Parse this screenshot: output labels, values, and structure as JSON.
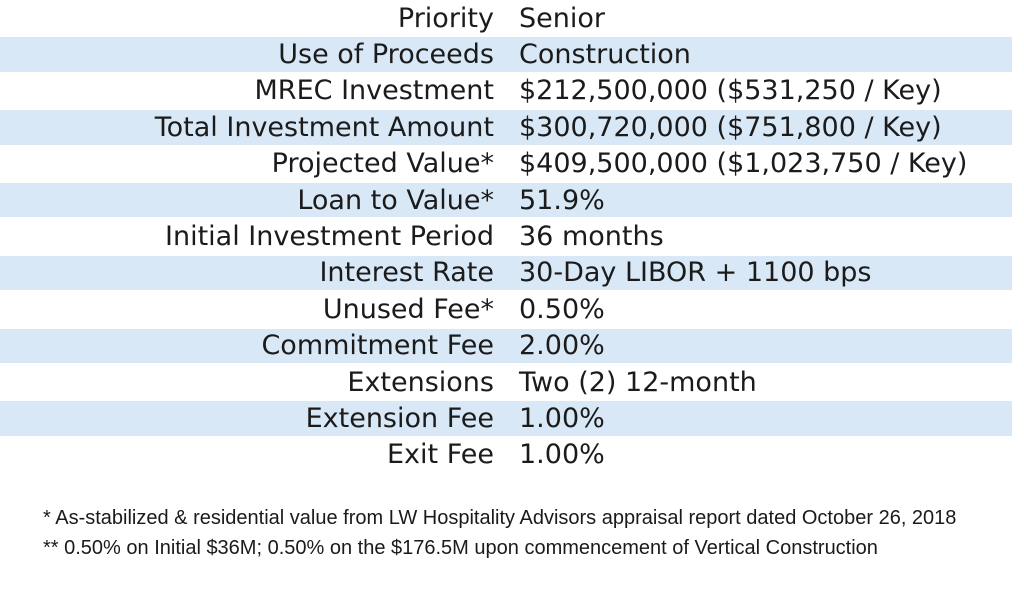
{
  "table": {
    "zebra_color": "#d9e8f6",
    "text_color": "#1b1b1b",
    "rows": [
      {
        "label": "Priority",
        "value": "Senior"
      },
      {
        "label": "Use of Proceeds",
        "value": "Construction"
      },
      {
        "label": "MREC Investment",
        "value": "$212,500,000 ($531,250 / Key)"
      },
      {
        "label": "Total Investment Amount",
        "value": "$300,720,000 ($751,800 / Key)"
      },
      {
        "label": "Projected Value*",
        "value": "$409,500,000 ($1,023,750 / Key)"
      },
      {
        "label": "Loan to Value*",
        "value": "51.9%"
      },
      {
        "label": "Initial Investment Period",
        "value": "36 months"
      },
      {
        "label": "Interest Rate",
        "value": "30-Day LIBOR + 1100 bps"
      },
      {
        "label": "Unused Fee*",
        "value": "0.50%"
      },
      {
        "label": "Commitment Fee",
        "value": "2.00%"
      },
      {
        "label": "Extensions",
        "value": "Two (2) 12-month"
      },
      {
        "label": "Extension Fee",
        "value": "1.00%"
      },
      {
        "label": "Exit Fee",
        "value": "1.00%"
      }
    ]
  },
  "footnotes": [
    "* As-stabilized & residential value from LW Hospitality Advisors appraisal report dated October 26, 2018",
    "** 0.50% on Initial $36M; 0.50% on the $176.5M upon commencement of Vertical Construction"
  ]
}
